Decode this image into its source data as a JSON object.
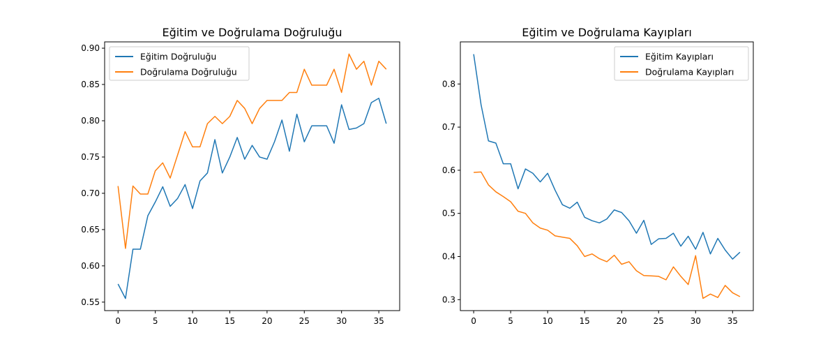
{
  "chart_data": [
    {
      "type": "line",
      "title": "Eğitim ve Doğrulama Doğruluğu",
      "xlabel": "",
      "ylabel": "",
      "xlim": [
        -1.8,
        37.8
      ],
      "ylim": [
        0.5383,
        0.9087
      ],
      "xticks": [
        0,
        5,
        10,
        15,
        20,
        25,
        30,
        35
      ],
      "xtick_labels": [
        "0",
        "5",
        "10",
        "15",
        "20",
        "25",
        "30",
        "35"
      ],
      "yticks": [
        0.55,
        0.6,
        0.65,
        0.7,
        0.75,
        0.8,
        0.85,
        0.9
      ],
      "ytick_labels": [
        "0.55",
        "0.60",
        "0.65",
        "0.70",
        "0.75",
        "0.80",
        "0.85",
        "0.90"
      ],
      "grid": false,
      "legend_position": "top-left",
      "series": [
        {
          "name": "Eğitim Doğruluğu",
          "color": "#1f77b4",
          "x": [
            0,
            1,
            2,
            3,
            4,
            5,
            6,
            7,
            8,
            9,
            10,
            11,
            12,
            13,
            14,
            15,
            16,
            17,
            18,
            19,
            20,
            21,
            22,
            23,
            24,
            25,
            26,
            27,
            28,
            29,
            30,
            31,
            32,
            33,
            34,
            35,
            36
          ],
          "values": [
            0.575,
            0.555,
            0.623,
            0.623,
            0.669,
            0.688,
            0.709,
            0.682,
            0.693,
            0.712,
            0.679,
            0.717,
            0.728,
            0.774,
            0.728,
            0.75,
            0.777,
            0.747,
            0.766,
            0.75,
            0.747,
            0.771,
            0.801,
            0.758,
            0.809,
            0.771,
            0.793,
            0.793,
            0.793,
            0.769,
            0.822,
            0.788,
            0.79,
            0.796,
            0.825,
            0.831,
            0.796
          ]
        },
        {
          "name": "Doğrulama Doğruluğu",
          "color": "#ff7f0e",
          "x": [
            0,
            1,
            2,
            3,
            4,
            5,
            6,
            7,
            8,
            9,
            10,
            11,
            12,
            13,
            14,
            15,
            16,
            17,
            18,
            19,
            20,
            21,
            22,
            23,
            24,
            25,
            26,
            27,
            28,
            29,
            30,
            31,
            32,
            33,
            34,
            35,
            36
          ],
          "values": [
            0.71,
            0.624,
            0.71,
            0.699,
            0.699,
            0.731,
            0.742,
            0.721,
            0.753,
            0.785,
            0.764,
            0.764,
            0.796,
            0.806,
            0.796,
            0.806,
            0.828,
            0.817,
            0.796,
            0.817,
            0.828,
            0.828,
            0.828,
            0.839,
            0.839,
            0.871,
            0.849,
            0.849,
            0.849,
            0.871,
            0.839,
            0.892,
            0.871,
            0.882,
            0.849,
            0.882,
            0.871
          ]
        }
      ]
    },
    {
      "type": "line",
      "title": "Eğitim ve Doğrulama Kayıpları",
      "xlabel": "",
      "ylabel": "",
      "xlim": [
        -1.8,
        37.8
      ],
      "ylim": [
        0.2746,
        0.8976
      ],
      "xticks": [
        0,
        5,
        10,
        15,
        20,
        25,
        30,
        35
      ],
      "xtick_labels": [
        "0",
        "5",
        "10",
        "15",
        "20",
        "25",
        "30",
        "35"
      ],
      "yticks": [
        0.3,
        0.4,
        0.5,
        0.6,
        0.7,
        0.8
      ],
      "ytick_labels": [
        "0.3",
        "0.4",
        "0.5",
        "0.6",
        "0.7",
        "0.8"
      ],
      "grid": false,
      "legend_position": "top-right",
      "series": [
        {
          "name": "Eğitim Kayıpları",
          "color": "#1f77b4",
          "x": [
            0,
            1,
            2,
            3,
            4,
            5,
            6,
            7,
            8,
            9,
            10,
            11,
            12,
            13,
            14,
            15,
            16,
            17,
            18,
            19,
            20,
            21,
            22,
            23,
            24,
            25,
            26,
            27,
            28,
            29,
            30,
            31,
            32,
            33,
            34,
            35,
            36
          ],
          "values": [
            0.869,
            0.752,
            0.668,
            0.663,
            0.615,
            0.615,
            0.557,
            0.603,
            0.593,
            0.573,
            0.593,
            0.554,
            0.52,
            0.512,
            0.526,
            0.491,
            0.483,
            0.478,
            0.487,
            0.508,
            0.502,
            0.483,
            0.454,
            0.484,
            0.428,
            0.441,
            0.442,
            0.454,
            0.424,
            0.447,
            0.417,
            0.456,
            0.406,
            0.442,
            0.415,
            0.394,
            0.41
          ]
        },
        {
          "name": "Doğrulama Kayıpları",
          "color": "#ff7f0e",
          "x": [
            0,
            1,
            2,
            3,
            4,
            5,
            6,
            7,
            8,
            9,
            10,
            11,
            12,
            13,
            14,
            15,
            16,
            17,
            18,
            19,
            20,
            21,
            22,
            23,
            24,
            25,
            26,
            27,
            28,
            29,
            30,
            31,
            32,
            33,
            34,
            35,
            36
          ],
          "values": [
            0.595,
            0.596,
            0.566,
            0.55,
            0.539,
            0.527,
            0.505,
            0.5,
            0.478,
            0.466,
            0.461,
            0.448,
            0.445,
            0.442,
            0.425,
            0.4,
            0.406,
            0.395,
            0.388,
            0.403,
            0.382,
            0.388,
            0.367,
            0.356,
            0.355,
            0.354,
            0.346,
            0.376,
            0.354,
            0.335,
            0.402,
            0.303,
            0.313,
            0.305,
            0.333,
            0.316,
            0.307
          ]
        }
      ]
    }
  ]
}
